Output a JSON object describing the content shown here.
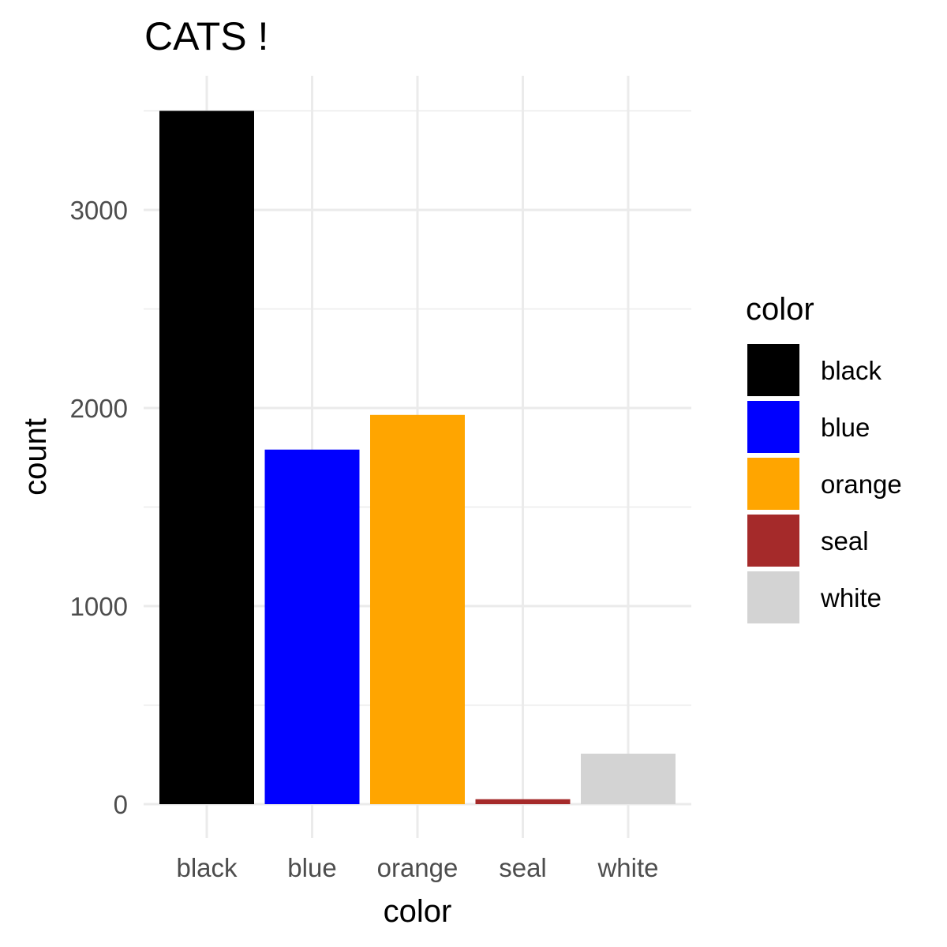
{
  "chart_data": {
    "type": "bar",
    "title": "CATS !",
    "xlabel": "color",
    "ylabel": "count",
    "categories": [
      "black",
      "blue",
      "orange",
      "seal",
      "white"
    ],
    "values": [
      3500,
      1790,
      1965,
      25,
      255
    ],
    "colors": [
      "#000000",
      "#0000ff",
      "#ffa500",
      "#a52a2a",
      "#d3d3d3"
    ],
    "ylim": [
      0,
      3500
    ],
    "yticks": [
      0,
      1000,
      2000,
      3000
    ],
    "ytick_labels": [
      "0",
      "1000",
      "2000",
      "3000"
    ],
    "grid": true,
    "legend": {
      "title": "color",
      "placement": "right",
      "items": [
        "black",
        "blue",
        "orange",
        "seal",
        "white"
      ]
    }
  }
}
